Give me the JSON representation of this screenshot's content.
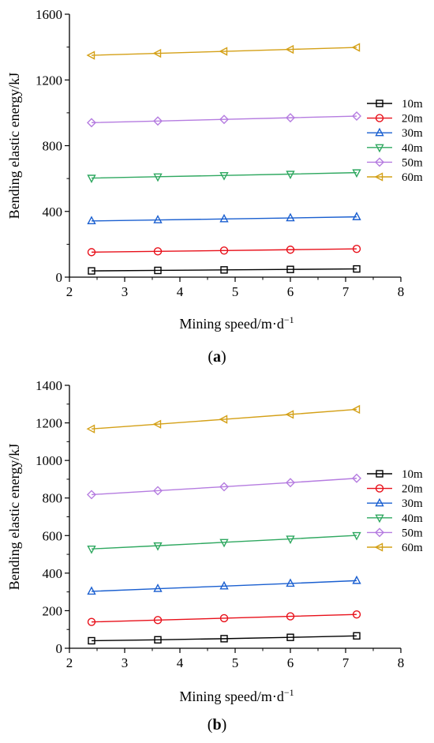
{
  "chart_data": [
    {
      "type": "line",
      "panel_label": "a",
      "xlabel": "Mining speed/m·d",
      "xlabel_sup": "−1",
      "ylabel": "Bending elastic energy/kJ",
      "xlim": [
        2,
        8
      ],
      "ylim": [
        0,
        1600
      ],
      "xticks": [
        2,
        3,
        4,
        5,
        6,
        7,
        8
      ],
      "yticks": [
        0,
        400,
        800,
        1200,
        1600
      ],
      "x": [
        2.4,
        3.6,
        4.8,
        6.0,
        7.2
      ],
      "legend_position": "right",
      "series": [
        {
          "name": "10m",
          "color": "#000000",
          "marker": "square",
          "values": [
            38,
            41,
            44,
            47,
            50
          ]
        },
        {
          "name": "20m",
          "color": "#e8101a",
          "marker": "circle",
          "values": [
            152,
            157,
            162,
            167,
            172
          ]
        },
        {
          "name": "30m",
          "color": "#1a5fd0",
          "marker": "triangle-up",
          "values": [
            342,
            348,
            354,
            360,
            367
          ]
        },
        {
          "name": "40m",
          "color": "#2fa860",
          "marker": "triangle-down",
          "values": [
            603,
            611,
            619,
            627,
            636
          ]
        },
        {
          "name": "50m",
          "color": "#b57ce0",
          "marker": "diamond",
          "values": [
            940,
            950,
            960,
            970,
            980
          ]
        },
        {
          "name": "60m",
          "color": "#d4a017",
          "marker": "triangle-left",
          "values": [
            1350,
            1362,
            1374,
            1386,
            1398
          ]
        }
      ]
    },
    {
      "type": "line",
      "panel_label": "b",
      "xlabel": "Mining speed/m·d",
      "xlabel_sup": "−1",
      "ylabel": "Bending elastic energy/kJ",
      "xlim": [
        2,
        8
      ],
      "ylim": [
        0,
        1400
      ],
      "xticks": [
        2,
        3,
        4,
        5,
        6,
        7,
        8
      ],
      "yticks": [
        0,
        200,
        400,
        600,
        800,
        1000,
        1200,
        1400
      ],
      "x": [
        2.4,
        3.6,
        4.8,
        6.0,
        7.2
      ],
      "legend_position": "right",
      "series": [
        {
          "name": "10m",
          "color": "#000000",
          "marker": "square",
          "values": [
            40,
            45,
            51,
            58,
            66
          ]
        },
        {
          "name": "20m",
          "color": "#e8101a",
          "marker": "circle",
          "values": [
            140,
            150,
            160,
            170,
            180
          ]
        },
        {
          "name": "30m",
          "color": "#1a5fd0",
          "marker": "triangle-up",
          "values": [
            303,
            317,
            331,
            345,
            360
          ]
        },
        {
          "name": "40m",
          "color": "#2fa860",
          "marker": "triangle-down",
          "values": [
            529,
            546,
            564,
            582,
            601
          ]
        },
        {
          "name": "50m",
          "color": "#b57ce0",
          "marker": "diamond",
          "values": [
            818,
            839,
            860,
            882,
            905
          ]
        },
        {
          "name": "60m",
          "color": "#d4a017",
          "marker": "triangle-left",
          "values": [
            1168,
            1193,
            1219,
            1245,
            1272
          ]
        }
      ]
    }
  ]
}
